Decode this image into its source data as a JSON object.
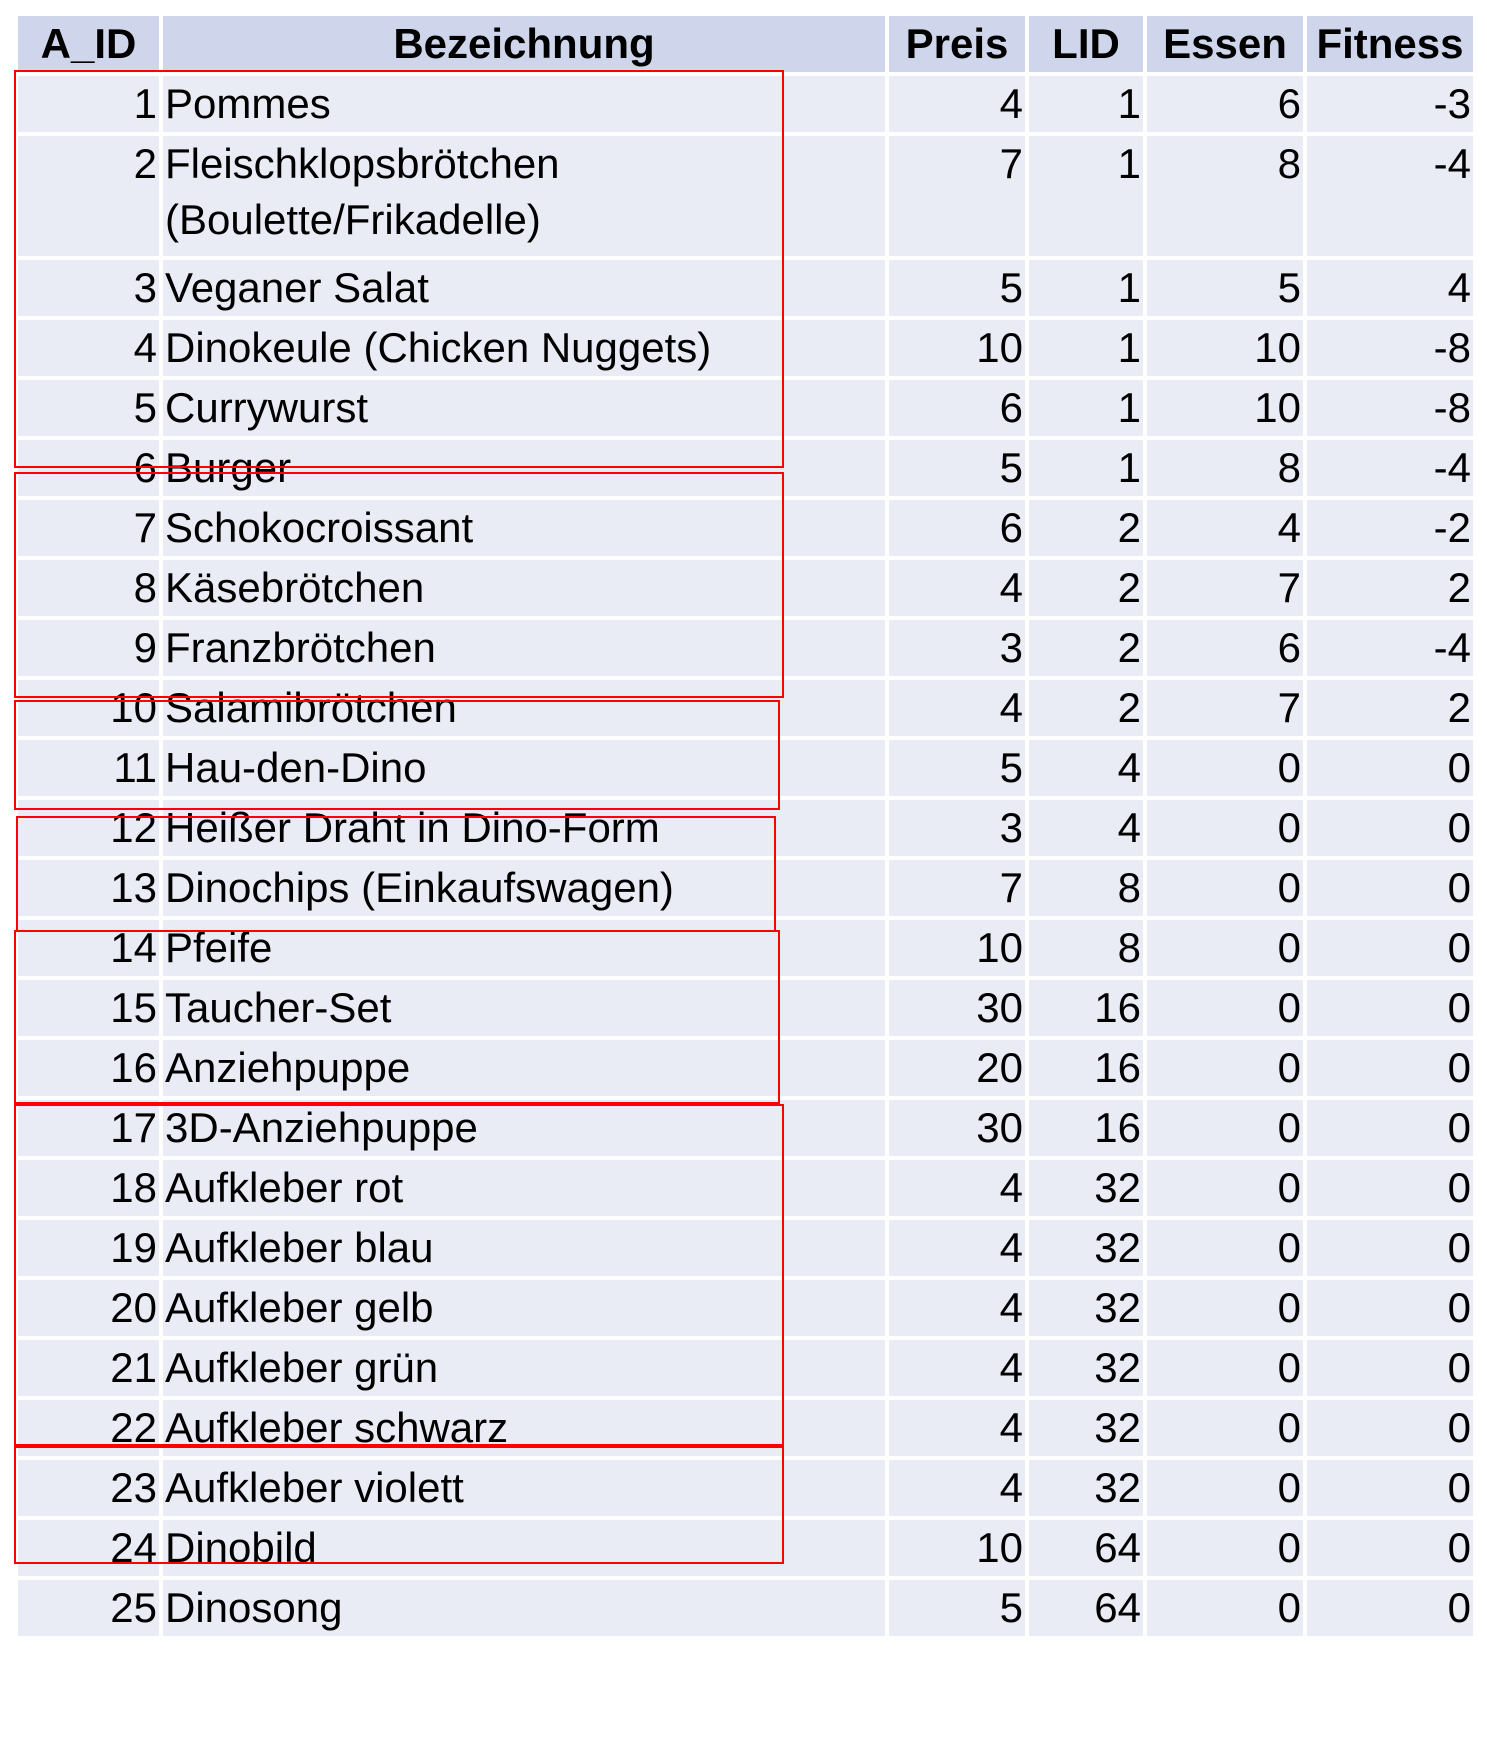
{
  "table": {
    "headers": [
      "A_ID",
      "Bezeichnung",
      "Preis",
      "LID",
      "Essen",
      "Fitness"
    ],
    "rows": [
      [
        "1",
        "Pommes",
        "4",
        "1",
        "6",
        "-3"
      ],
      [
        "2",
        "Fleischklopsbrötchen (Boulette/Frikadelle)",
        "7",
        "1",
        "8",
        "-4"
      ],
      [
        "3",
        "Veganer Salat",
        "5",
        "1",
        "5",
        "4"
      ],
      [
        "4",
        "Dinokeule (Chicken Nuggets)",
        "10",
        "1",
        "10",
        "-8"
      ],
      [
        "5",
        "Currywurst",
        "6",
        "1",
        "10",
        "-8"
      ],
      [
        "6",
        "Burger",
        "5",
        "1",
        "8",
        "-4"
      ],
      [
        "7",
        "Schokocroissant",
        "6",
        "2",
        "4",
        "-2"
      ],
      [
        "8",
        "Käsebrötchen",
        "4",
        "2",
        "7",
        "2"
      ],
      [
        "9",
        "Franzbrötchen",
        "3",
        "2",
        "6",
        "-4"
      ],
      [
        "10",
        "Salamibrötchen",
        "4",
        "2",
        "7",
        "2"
      ],
      [
        "11",
        "Hau-den-Dino",
        "5",
        "4",
        "0",
        "0"
      ],
      [
        "12",
        "Heißer Draht in Dino-Form",
        "3",
        "4",
        "0",
        "0"
      ],
      [
        "13",
        "Dinochips (Einkaufswagen)",
        "7",
        "8",
        "0",
        "0"
      ],
      [
        "14",
        "Pfeife",
        "10",
        "8",
        "0",
        "0"
      ],
      [
        "15",
        "Taucher-Set",
        "30",
        "16",
        "0",
        "0"
      ],
      [
        "16",
        "Anziehpuppe",
        "20",
        "16",
        "0",
        "0"
      ],
      [
        "17",
        "3D-Anziehpuppe",
        "30",
        "16",
        "0",
        "0"
      ],
      [
        "18",
        "Aufkleber rot",
        "4",
        "32",
        "0",
        "0"
      ],
      [
        "19",
        "Aufkleber blau",
        "4",
        "32",
        "0",
        "0"
      ],
      [
        "20",
        "Aufkleber gelb",
        "4",
        "32",
        "0",
        "0"
      ],
      [
        "21",
        "Aufkleber grün",
        "4",
        "32",
        "0",
        "0"
      ],
      [
        "22",
        "Aufkleber schwarz",
        "4",
        "32",
        "0",
        "0"
      ],
      [
        "23",
        "Aufkleber violett",
        "4",
        "32",
        "0",
        "0"
      ],
      [
        "24",
        "Dinobild",
        "10",
        "64",
        "0",
        "0"
      ],
      [
        "25",
        "Dinosong",
        "5",
        "64",
        "0",
        "0"
      ]
    ]
  },
  "colors": {
    "header_fill": "#cfd5ea",
    "row_fill": "#e9ebf5",
    "group_outline": "#ff0000"
  }
}
